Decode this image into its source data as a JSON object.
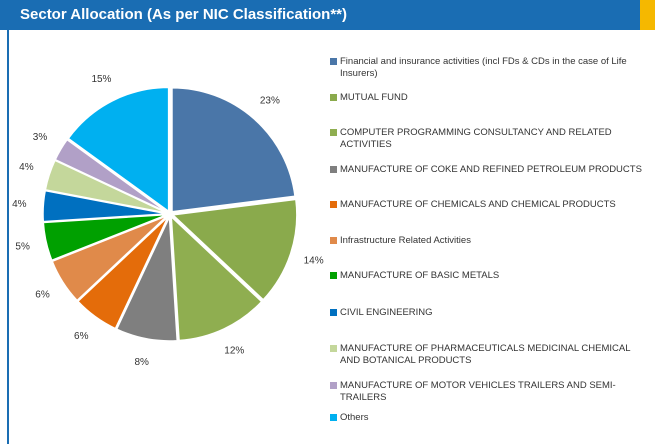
{
  "chart_data": {
    "type": "pie",
    "title": "Sector Allocation (As per NIC Classification**)",
    "categories": [
      "Financial and insurance activities (incl FDs & CDs in the case of Life Insurers)",
      "MUTUAL FUND",
      "COMPUTER PROGRAMMING  CONSULTANCY AND RELATED ACTIVITIES",
      "MANUFACTURE OF COKE AND REFINED PETROLEUM PRODUCTS",
      "MANUFACTURE OF CHEMICALS AND CHEMICAL PRODUCTS",
      "Infrastructure Related Activities",
      "MANUFACTURE OF BASIC METALS",
      "CIVIL ENGINEERING",
      "MANUFACTURE OF PHARMACEUTICALS  MEDICINAL CHEMICAL AND BOTANICAL PRODUCTS",
      "MANUFACTURE OF MOTOR VEHICLES  TRAILERS AND SEMI-TRAILERS",
      "Others"
    ],
    "values": [
      23,
      14,
      12,
      8,
      6,
      6,
      5,
      4,
      4,
      3,
      15
    ],
    "value_labels": [
      "23%",
      "14%",
      "12%",
      "8%",
      "6%",
      "6%",
      "5%",
      "4%",
      "4%",
      "3%",
      "15%"
    ],
    "colors": [
      "#4a76a8",
      "#8aaa4c",
      "#8fae50",
      "#7f7f7f",
      "#e46c0a",
      "#e08a4a",
      "#00a000",
      "#0070c0",
      "#c4d79b",
      "#b1a0c7",
      "#00b0f0"
    ]
  }
}
